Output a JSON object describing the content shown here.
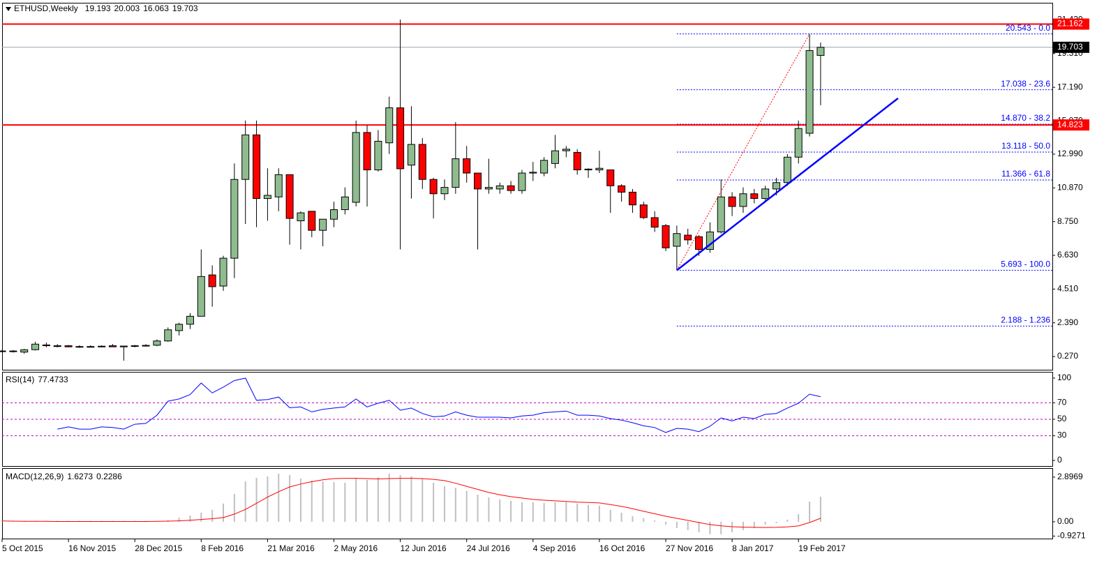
{
  "chart_data": [
    {
      "type": "candlestick",
      "title": "ETHUSD,Weekly",
      "categories": [
        "5 Oct 2015",
        null,
        null,
        null,
        null,
        null,
        "16 Nov 2015",
        null,
        null,
        null,
        null,
        null,
        "28 Dec 2015",
        null,
        null,
        null,
        null,
        null,
        "8 Feb 2016",
        null,
        null,
        null,
        null,
        null,
        "21 Mar 2016",
        null,
        null,
        null,
        null,
        null,
        "2 May 2016",
        null,
        null,
        null,
        null,
        null,
        "12 Jun 2016",
        null,
        null,
        null,
        null,
        null,
        "24 Jul 2016",
        null,
        null,
        null,
        null,
        null,
        "4 Sep 2016",
        null,
        null,
        null,
        null,
        null,
        "16 Oct 2016",
        null,
        null,
        null,
        null,
        null,
        "27 Nov 2016",
        null,
        null,
        null,
        null,
        null,
        "8 Jan 2017",
        null,
        null,
        null,
        null,
        null,
        "19 Feb 2017",
        null,
        null
      ],
      "open": [
        0.62,
        0.6,
        0.55,
        0.7,
        1.0,
        0.95,
        0.95,
        0.9,
        0.9,
        0.9,
        0.95,
        0.88,
        0.93,
        0.95,
        0.98,
        1.25,
        1.9,
        2.3,
        2.8,
        5.4,
        4.7,
        6.45,
        11.4,
        14.2,
        10.2,
        10.3,
        11.7,
        8.8,
        9.4,
        8.2,
        8.9,
        9.5,
        9.96,
        14.35,
        12.0,
        13.7,
        15.9,
        12.3,
        13.6,
        11.4,
        10.5,
        10.9,
        12.7,
        11.8,
        10.8,
        10.8,
        11.0,
        10.7,
        11.8,
        11.8,
        12.4,
        13.2,
        13.1,
        12.0,
        12.0,
        12.0,
        11.0,
        10.6,
        9.8,
        9.0,
        8.5,
        7.2,
        7.9,
        7.8,
        7.0,
        8.1,
        10.3,
        9.7,
        10.5,
        10.2,
        10.8,
        11.2,
        12.8,
        14.3,
        19.193
      ],
      "high": [
        0.68,
        0.68,
        0.75,
        1.2,
        1.15,
        1.05,
        1.0,
        0.98,
        0.98,
        0.98,
        1.05,
        0.92,
        1.0,
        1.05,
        1.35,
        2.1,
        2.4,
        3.0,
        7.0,
        6.0,
        6.6,
        12.4,
        15.1,
        15.1,
        12.1,
        12.1,
        11.7,
        9.4,
        9.4,
        8.8,
        10.0,
        10.9,
        15.1,
        14.8,
        14.5,
        16.6,
        21.45,
        16.0,
        14.0,
        11.5,
        11.4,
        15.0,
        13.5,
        11.8,
        12.7,
        11.2,
        11.3,
        12.0,
        12.5,
        12.8,
        14.2,
        13.5,
        13.3,
        12.1,
        13.2,
        12.0,
        11.1,
        10.8,
        10.0,
        9.4,
        8.6,
        8.5,
        8.3,
        7.9,
        8.7,
        11.4,
        10.6,
        10.9,
        10.8,
        11.0,
        11.5,
        13.0,
        15.1,
        20.543,
        20.003
      ],
      "low": [
        0.55,
        0.52,
        0.45,
        0.65,
        0.85,
        0.85,
        0.85,
        0.82,
        0.85,
        0.85,
        0.88,
        0.01,
        0.85,
        0.9,
        0.92,
        1.2,
        1.6,
        2.0,
        2.8,
        3.4,
        4.4,
        5.2,
        8.6,
        8.4,
        8.8,
        9.4,
        7.3,
        7.0,
        7.77,
        7.2,
        8.4,
        9.2,
        9.7,
        9.7,
        11.9,
        13.0,
        7.0,
        10.2,
        10.8,
        8.95,
        10.1,
        10.5,
        11.2,
        7.0,
        10.5,
        10.5,
        10.5,
        10.5,
        11.3,
        11.6,
        12.1,
        12.8,
        11.7,
        11.5,
        11.8,
        9.3,
        10.0,
        9.3,
        8.9,
        8.1,
        6.9,
        5.693,
        7.3,
        6.6,
        6.8,
        8.0,
        9.1,
        9.3,
        9.9,
        10.0,
        10.4,
        11.0,
        12.4,
        14.1,
        16.063
      ],
      "close": [
        0.6,
        0.62,
        0.7,
        1.05,
        0.95,
        0.9,
        0.88,
        0.88,
        0.88,
        0.92,
        0.88,
        0.93,
        0.95,
        0.97,
        1.25,
        1.95,
        2.3,
        2.8,
        5.3,
        4.66,
        6.45,
        11.4,
        14.2,
        10.2,
        10.4,
        11.7,
        8.95,
        9.3,
        8.2,
        8.9,
        9.5,
        10.3,
        14.35,
        12.0,
        13.8,
        15.9,
        12.07,
        13.6,
        11.4,
        10.5,
        10.9,
        12.7,
        11.8,
        10.8,
        10.9,
        11.0,
        10.7,
        11.8,
        11.85,
        12.6,
        13.2,
        13.3,
        12.0,
        12.05,
        12.1,
        11.0,
        10.6,
        9.8,
        9.0,
        8.4,
        7.1,
        8.0,
        7.6,
        7.0,
        8.1,
        10.3,
        9.7,
        10.5,
        10.2,
        10.8,
        11.2,
        12.8,
        14.6,
        19.5,
        19.703
      ],
      "up_color": "#8fbc8f",
      "down_color": "#ff0000",
      "price_line_color": "#9ea3b0",
      "ylim": [
        -0.56,
        22.5
      ],
      "yticks": [
        {
          "value": 0.27,
          "label": "0.270"
        },
        {
          "value": 2.39,
          "label": "2.390"
        },
        {
          "value": 4.51,
          "label": "4.510"
        },
        {
          "value": 6.63,
          "label": "6.630"
        },
        {
          "value": 8.75,
          "label": "8.750"
        },
        {
          "value": 10.87,
          "label": "10.870"
        },
        {
          "value": 12.99,
          "label": "12.990"
        },
        {
          "value": 15.07,
          "label": "15.070"
        },
        {
          "value": 17.19,
          "label": "17.190"
        },
        {
          "value": 19.31,
          "label": "19.310"
        },
        {
          "value": 21.43,
          "label": "21.430"
        }
      ],
      "hlines": [
        {
          "value": 21.162,
          "color": "#ff0000"
        },
        {
          "value": 14.823,
          "color": "#ff0000"
        }
      ],
      "fib_levels": [
        {
          "value": 20.543,
          "label": "20.543 - 0.0"
        },
        {
          "value": 17.038,
          "label": "17.038 - 23.6"
        },
        {
          "value": 14.87,
          "label": "14.870 - 38.2"
        },
        {
          "value": 13.118,
          "label": "13.118 - 50.0"
        },
        {
          "value": 11.366,
          "label": "11.366 - 61.8"
        },
        {
          "value": 5.693,
          "label": "5.693 - 100.0"
        },
        {
          "value": 2.188,
          "label": "2.188 - 1.236"
        }
      ],
      "fib_color": "#0000ff",
      "fib_line": {
        "x": [
          61,
          73
        ],
        "values": [
          5.693,
          20.543
        ],
        "color": "#ff0000"
      },
      "trendline": {
        "x": [
          61,
          81
        ],
        "values": [
          5.69,
          16.5
        ],
        "color": "#0000ff"
      }
    },
    {
      "type": "line",
      "title": "RSI(14)",
      "color": "#0000ff",
      "level_color": "#c000c0",
      "values": [
        null,
        null,
        null,
        null,
        null,
        38,
        40.7,
        38,
        38,
        40.7,
        40,
        38,
        44,
        45,
        55,
        72,
        74.6,
        80,
        94,
        82,
        89,
        97,
        100,
        73,
        74,
        77,
        64,
        65,
        59,
        62,
        63.6,
        65,
        74.6,
        65,
        69.5,
        73,
        61,
        63.6,
        57,
        53,
        54,
        59,
        55,
        52.5,
        52.5,
        52.5,
        51.7,
        54,
        55,
        58,
        59,
        60,
        55,
        55,
        54,
        50.8,
        49,
        45.8,
        42,
        40,
        34,
        39,
        38,
        35,
        41.5,
        51.7,
        48,
        52.5,
        50.8,
        56,
        57,
        63.6,
        69.5,
        80.5,
        77.4733
      ],
      "levels": [
        30,
        50,
        70
      ],
      "ylim": [
        -6.8,
        107.6
      ],
      "yticks": [
        0,
        30,
        50,
        70,
        100
      ]
    },
    {
      "type": "bar",
      "title": "MACD(12,26,9)",
      "color": "#c0c0c0",
      "values": [
        0.06,
        0.06,
        0.06,
        0.06,
        0.06,
        0.06,
        0.06,
        0.06,
        0.06,
        0.06,
        0.06,
        0.06,
        0.06,
        0.06,
        0.05,
        0.1,
        0.27,
        0.4,
        0.6,
        0.77,
        1.18,
        1.8,
        2.62,
        2.85,
        2.94,
        3.12,
        3.03,
        2.8,
        2.67,
        2.62,
        2.58,
        2.53,
        2.85,
        2.71,
        2.9,
        3.12,
        3.03,
        2.94,
        2.8,
        2.53,
        2.3,
        2.2,
        2.0,
        1.76,
        1.58,
        1.45,
        1.36,
        1.27,
        1.27,
        1.22,
        1.27,
        1.27,
        1.18,
        1.09,
        1.04,
        0.77,
        0.59,
        0.36,
        0.23,
        0.09,
        -0.18,
        -0.41,
        -0.54,
        -0.68,
        -0.81,
        -0.81,
        -0.68,
        -0.54,
        -0.41,
        -0.18,
        -0.09,
        0.14,
        0.5,
        1.31,
        1.6273
      ],
      "signal": {
        "color": "#ff0000",
        "values": [
          0.05,
          0.04,
          0.03,
          0.03,
          0.03,
          0.02,
          0.02,
          0.02,
          0.02,
          0.02,
          0.02,
          0.02,
          0.02,
          0.02,
          0.03,
          0.04,
          0.06,
          0.1,
          0.15,
          0.2,
          0.27,
          0.5,
          0.8,
          1.2,
          1.6,
          1.95,
          2.26,
          2.45,
          2.6,
          2.72,
          2.8,
          2.82,
          2.82,
          2.8,
          2.78,
          2.8,
          2.82,
          2.82,
          2.8,
          2.75,
          2.67,
          2.5,
          2.3,
          2.1,
          1.9,
          1.75,
          1.63,
          1.54,
          1.45,
          1.4,
          1.36,
          1.32,
          1.27,
          1.25,
          1.22,
          1.12,
          1.0,
          0.85,
          0.68,
          0.52,
          0.36,
          0.22,
          0.09,
          -0.05,
          -0.18,
          -0.26,
          -0.32,
          -0.35,
          -0.36,
          -0.37,
          -0.36,
          -0.33,
          -0.27,
          -0.05,
          0.2286
        ]
      },
      "ylim": [
        -1.09,
        3.48
      ],
      "yticks": [
        -0.9271,
        {
          "value": 0,
          "label": "0.00"
        },
        2.8969
      ]
    }
  ]
}
